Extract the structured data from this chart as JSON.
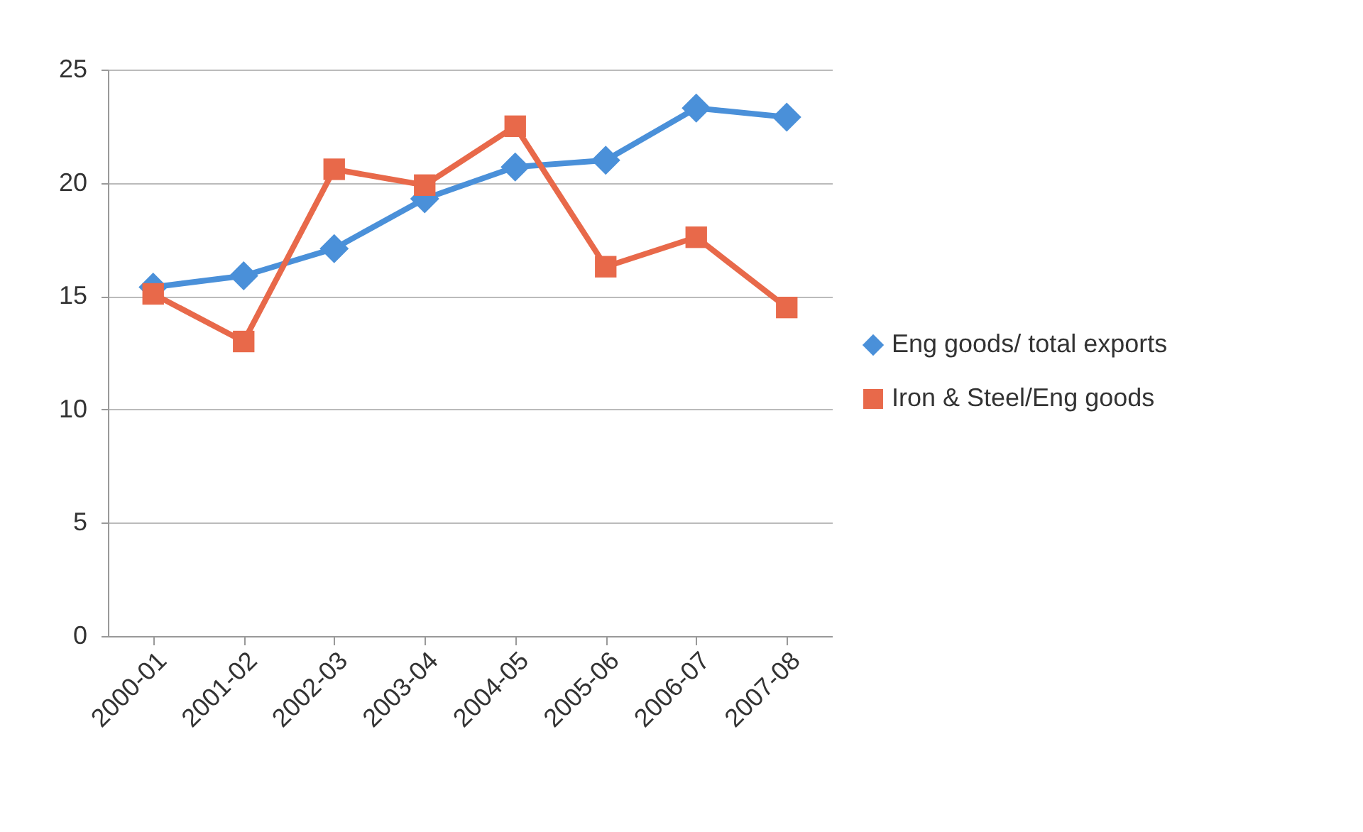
{
  "chart_data": {
    "type": "line",
    "categories": [
      "2000-01",
      "2001-02",
      "2002-03",
      "2003-04",
      "2004-05",
      "2005-06",
      "2006-07",
      "2007-08"
    ],
    "series": [
      {
        "name": "Eng goods/ total exports",
        "color": "#4a90d9",
        "marker": "diamond",
        "values": [
          15.4,
          15.9,
          17.1,
          19.3,
          20.7,
          21.0,
          23.3,
          22.9
        ]
      },
      {
        "name": "Iron & Steel/Eng goods",
        "color": "#e8694a",
        "marker": "square",
        "values": [
          15.1,
          13.0,
          20.6,
          19.9,
          22.5,
          16.3,
          17.6,
          14.5
        ]
      }
    ],
    "ylim": [
      0,
      25
    ],
    "yticks": [
      0,
      5,
      10,
      15,
      20,
      25
    ],
    "grid": "y",
    "legend": "right"
  }
}
